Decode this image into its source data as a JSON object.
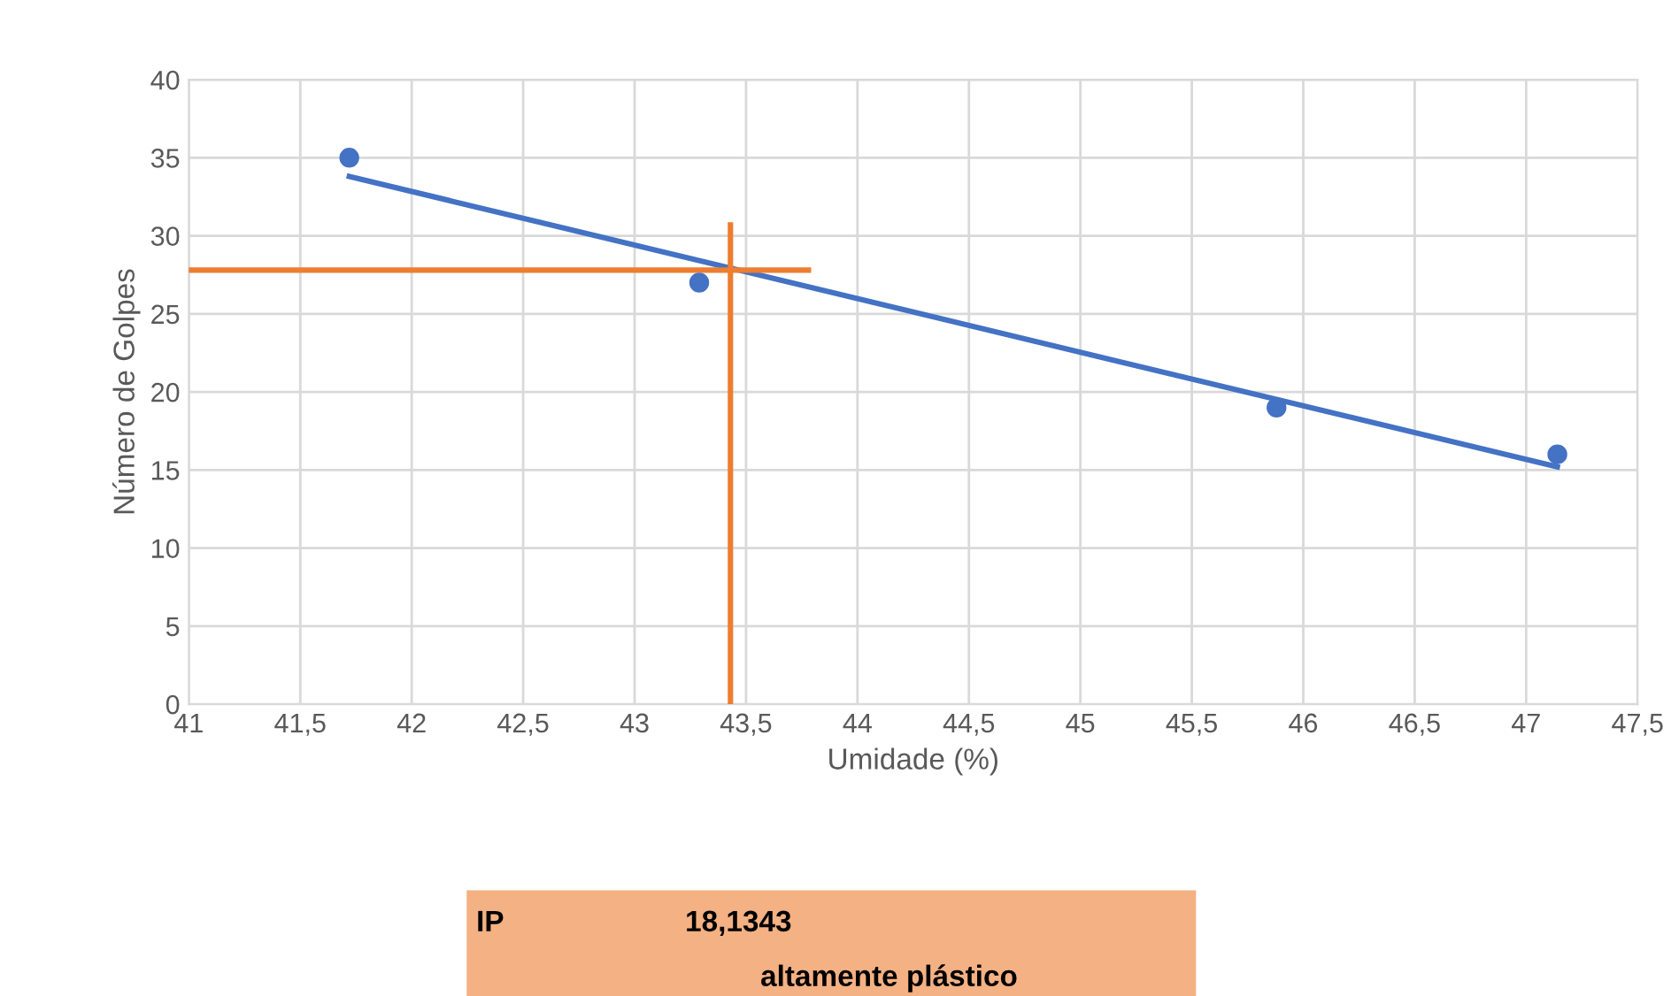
{
  "chart_data": {
    "type": "scatter",
    "xlabel": "Umidade (%)",
    "ylabel": "Número de Golpes",
    "xlim": [
      41,
      47.5
    ],
    "xticks": [
      {
        "value": 41,
        "label": "41"
      },
      {
        "value": 41.5,
        "label": "41,5"
      },
      {
        "value": 42,
        "label": "42"
      },
      {
        "value": 42.5,
        "label": "42,5"
      },
      {
        "value": 43,
        "label": "43"
      },
      {
        "value": 43.5,
        "label": "43,5"
      },
      {
        "value": 44,
        "label": "44"
      },
      {
        "value": 44.5,
        "label": "44,5"
      },
      {
        "value": 45,
        "label": "45"
      },
      {
        "value": 45.5,
        "label": "45,5"
      },
      {
        "value": 46,
        "label": "46"
      },
      {
        "value": 46.5,
        "label": "46,5"
      },
      {
        "value": 47,
        "label": "47"
      },
      {
        "value": 47.5,
        "label": "47,5"
      }
    ],
    "ylim": [
      0,
      40
    ],
    "yticks": [
      0,
      5,
      10,
      15,
      20,
      25,
      30,
      35,
      40
    ],
    "grid": true,
    "legend": false,
    "marker": "circle",
    "series": [
      {
        "color": "#4472c4",
        "x": [
          41.72,
          43.29,
          45.88,
          47.14
        ],
        "values": [
          35,
          27,
          19,
          16
        ]
      },
      {
        "type": "line",
        "color": "#4472c4",
        "marker": "none",
        "x": [
          41.72,
          47.14
        ],
        "values": [
          33.8,
          15.2
        ]
      },
      {
        "type": "line",
        "color": "#ed7d31",
        "marker": "none",
        "x": [
          41.0,
          43.78
        ],
        "values": [
          27.8,
          27.8
        ]
      },
      {
        "type": "line",
        "color": "#ed7d31",
        "marker": "none",
        "x": [
          43.43,
          43.43
        ],
        "values": [
          30.7,
          0
        ]
      }
    ],
    "annotations": [
      "IP",
      "18,1343",
      "altamente plástico"
    ]
  }
}
